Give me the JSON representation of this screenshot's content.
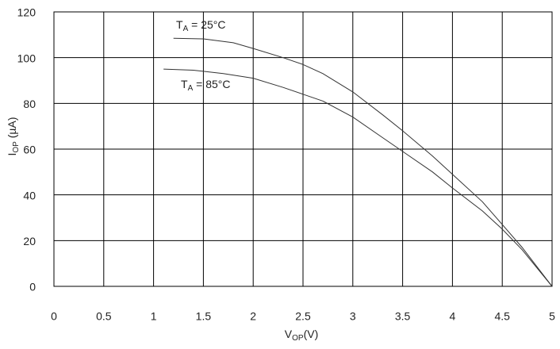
{
  "chart_data": {
    "type": "line",
    "xlabel": [
      "V",
      "OP",
      "(V)"
    ],
    "ylabel": [
      "I",
      "OP",
      " (µA)"
    ],
    "xlim": [
      0,
      5
    ],
    "xticks": [
      0,
      0.5,
      1,
      1.5,
      2,
      2.5,
      3,
      3.5,
      4,
      4.5,
      5
    ],
    "ylim": [
      0,
      120
    ],
    "yticks": [
      0,
      20,
      40,
      60,
      80,
      100,
      120
    ],
    "grid": true,
    "series": [
      {
        "label": [
          "T",
          "A",
          " = 25°C"
        ],
        "color": "#333333",
        "x": [
          1.2,
          1.5,
          1.8,
          2.0,
          2.3,
          2.5,
          2.7,
          3.0,
          3.3,
          3.5,
          3.8,
          4.0,
          4.3,
          4.5,
          4.7,
          5.0
        ],
        "values": [
          108.5,
          108.2,
          106.5,
          104,
          100,
          97,
          93,
          85,
          75,
          68,
          57,
          49,
          37,
          27,
          17,
          0
        ]
      },
      {
        "label": [
          "T",
          "A",
          " = 85°C"
        ],
        "color": "#333333",
        "x": [
          1.1,
          1.4,
          1.7,
          2.0,
          2.3,
          2.5,
          2.7,
          3.0,
          3.3,
          3.5,
          3.8,
          4.0,
          4.3,
          4.5,
          4.7,
          5.0
        ],
        "values": [
          95,
          94.5,
          93,
          91,
          87,
          84,
          81,
          74,
          65,
          59,
          50,
          43,
          33,
          25,
          16,
          0
        ]
      }
    ]
  }
}
